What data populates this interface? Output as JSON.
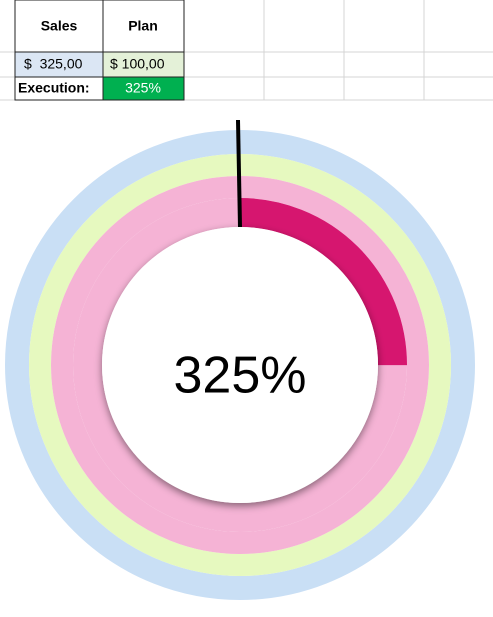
{
  "table": {
    "header": [
      "Sales",
      "Plan"
    ],
    "rows": [
      [
        "$  325,00",
        "$ 100,00"
      ],
      [
        "Execution:",
        "325%"
      ]
    ]
  },
  "chart_data": {
    "type": "radial-gauge",
    "values": [
      325
    ],
    "value_labels": [
      "325%"
    ],
    "ring_max": 100,
    "ring_colors": [
      "#c9dff5",
      "#e6f9bf",
      "#f5b3d5",
      "#d6166f"
    ],
    "track_color": "#f5b3d5"
  }
}
